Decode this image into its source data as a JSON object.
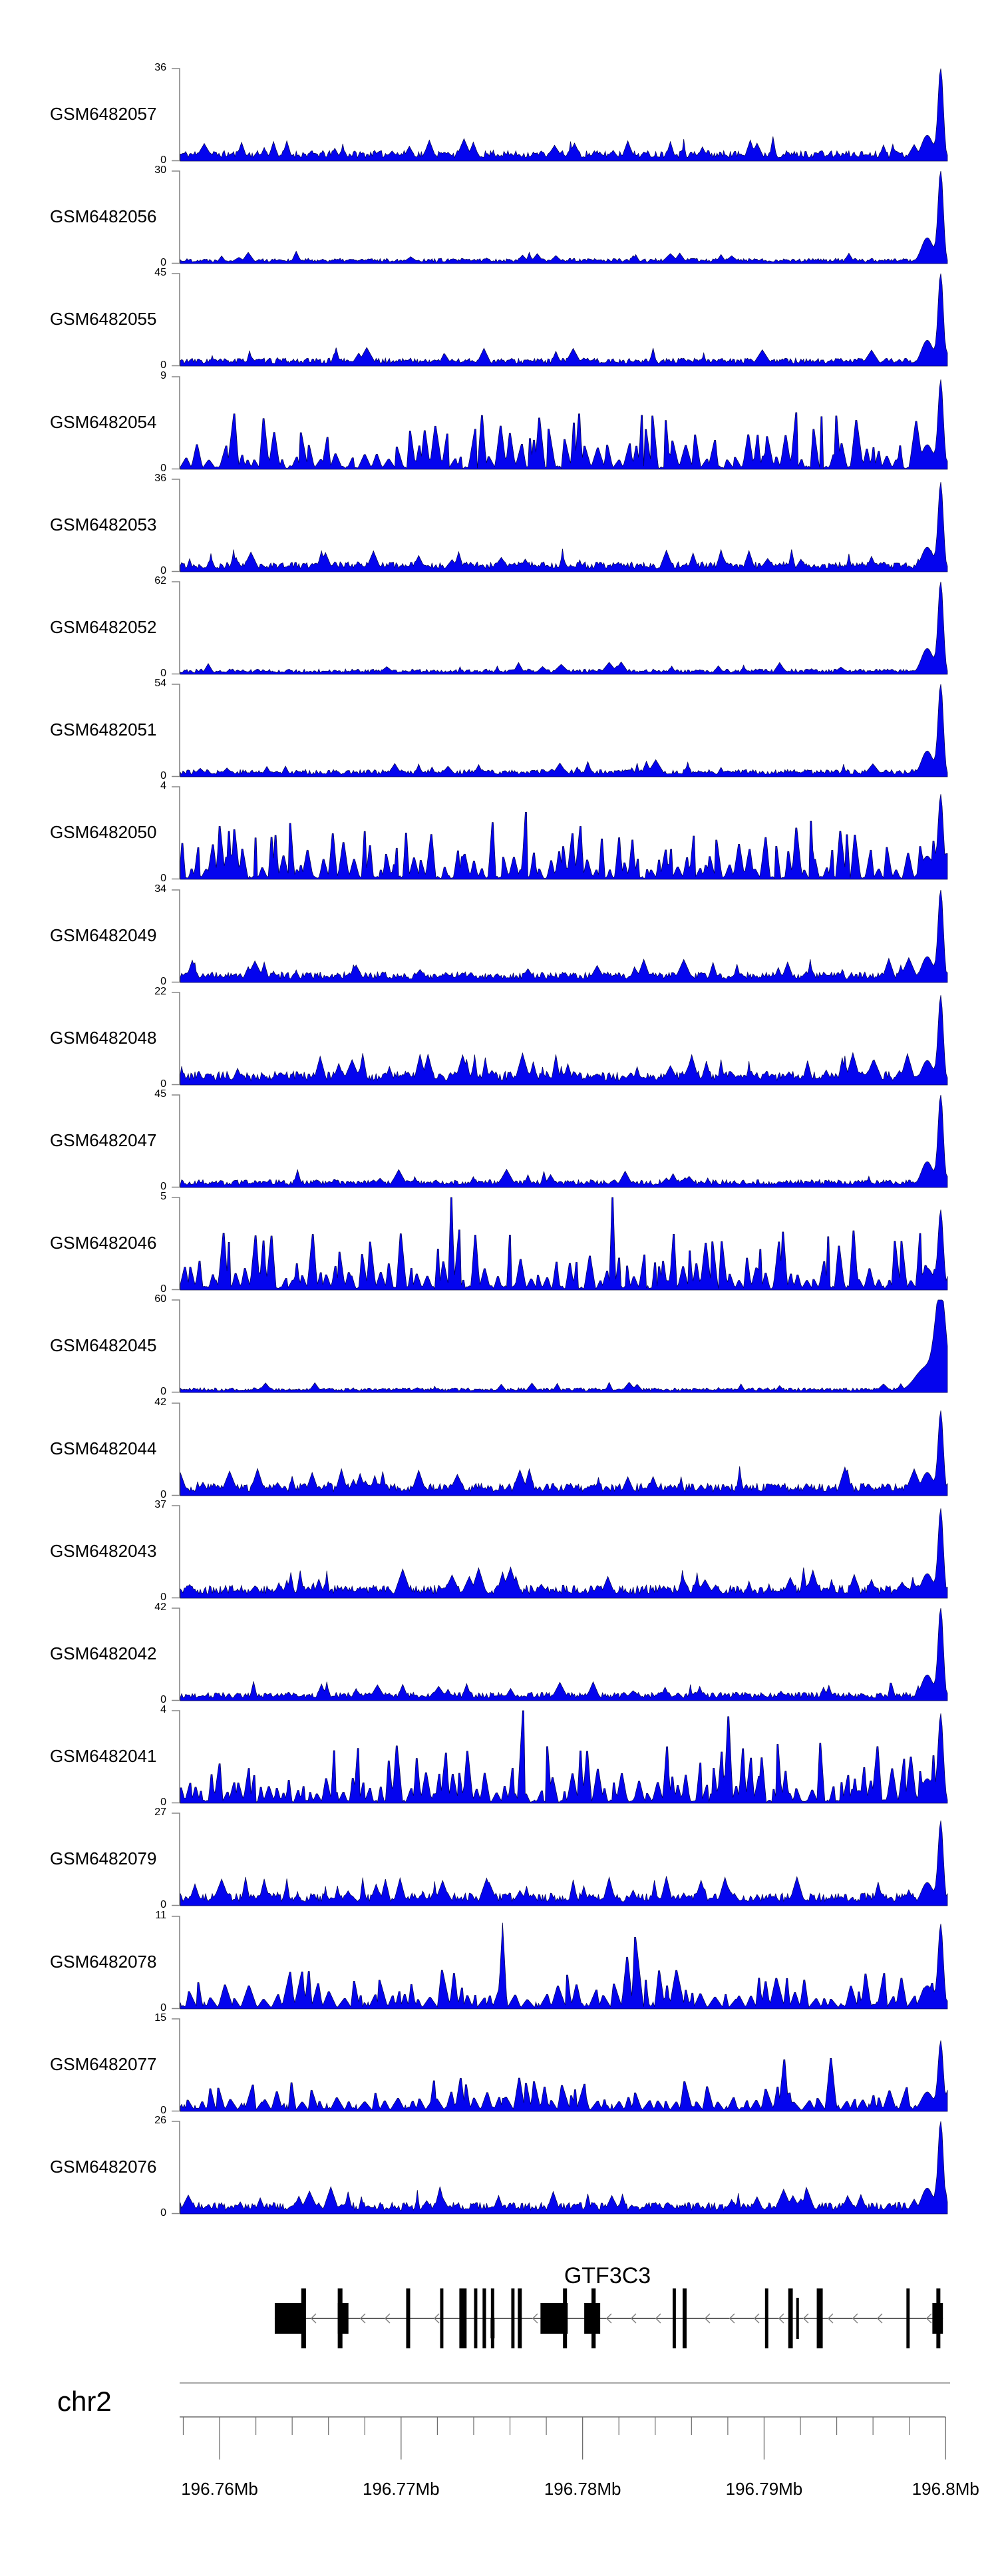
{
  "figure": {
    "background": "#ffffff",
    "description": "Genome browser coverage tracks (GEO samples) over the GTF3C3 locus on chr2"
  },
  "chart_data": {
    "type": "area",
    "chromosome": "chr2",
    "signal_color": "#0404ee",
    "signal_edge_color": "#00004a",
    "x_axis": {
      "unit": "Mb",
      "range_mb": [
        196.7578,
        196.8001
      ],
      "minor_tick_interval_mb": 0.002,
      "major_ticks": [
        {
          "mb": 196.76,
          "label": "196.76Mb"
        },
        {
          "mb": 196.77,
          "label": "196.77Mb"
        },
        {
          "mb": 196.78,
          "label": "196.78Mb"
        },
        {
          "mb": 196.79,
          "label": "196.79Mb"
        },
        {
          "mb": 196.8,
          "label": "196.8Mb"
        }
      ]
    },
    "tracks_note": "Each track is a dense read-coverage wiggle (0 to ymax). Exact per-base values are not resolvable; profiles are procedurally approximated from pattern parameters (pattern: 'noise' = low background with sharp promoter peak at right edge near 196.7995 Mb; 'tri' = broad spiky enrichment across the whole region).",
    "tracks": [
      {
        "label": "GSM6482057",
        "ymin": 0,
        "ymax": 36,
        "pattern": "noise",
        "base": 0.1,
        "bumpD": 0.05,
        "peak": 1.0,
        "seed": 11
      },
      {
        "label": "GSM6482056",
        "ymin": 0,
        "ymax": 30,
        "pattern": "noise",
        "base": 0.05,
        "bumpD": 0.03,
        "peak": 1.0,
        "seed": 22
      },
      {
        "label": "GSM6482055",
        "ymin": 0,
        "ymax": 45,
        "pattern": "noise",
        "base": 0.075,
        "bumpD": 0.04,
        "peak": 1.0,
        "seed": 33
      },
      {
        "label": "GSM6482054",
        "ymin": 0,
        "ymax": 9,
        "pattern": "tri",
        "amp": 0.5,
        "w": 5,
        "gapP": 0.25,
        "tallP": 0.06,
        "floor": 0.03,
        "peak": 0.95,
        "seed": 44
      },
      {
        "label": "GSM6482053",
        "ymin": 0,
        "ymax": 36,
        "pattern": "noise",
        "base": 0.095,
        "bumpD": 0.05,
        "peak": 0.95,
        "seed": 55
      },
      {
        "label": "GSM6482052",
        "ymin": 0,
        "ymax": 62,
        "pattern": "noise",
        "base": 0.05,
        "bumpD": 0.03,
        "peak": 1.0,
        "seed": 66
      },
      {
        "label": "GSM6482051",
        "ymin": 0,
        "ymax": 54,
        "pattern": "noise",
        "base": 0.07,
        "bumpD": 0.04,
        "peak": 1.0,
        "seed": 77
      },
      {
        "label": "GSM6482050",
        "ymin": 0,
        "ymax": 4,
        "pattern": "tri",
        "amp": 0.55,
        "w": 4,
        "gapP": 0.3,
        "tallP": 0.08,
        "floor": 0.03,
        "peak": 0.9,
        "seed": 88
      },
      {
        "label": "GSM6482049",
        "ymin": 0,
        "ymax": 34,
        "pattern": "noise",
        "base": 0.1,
        "bumpD": 0.05,
        "peak": 1.0,
        "seed": 99
      },
      {
        "label": "GSM6482048",
        "ymin": 0,
        "ymax": 22,
        "pattern": "noise",
        "base": 0.13,
        "bumpD": 0.06,
        "peak": 0.95,
        "seed": 110
      },
      {
        "label": "GSM6482047",
        "ymin": 0,
        "ymax": 45,
        "pattern": "noise",
        "base": 0.075,
        "bumpD": 0.04,
        "peak": 1.0,
        "seed": 121
      },
      {
        "label": "GSM6482046",
        "ymin": 0,
        "ymax": 5,
        "pattern": "tri",
        "amp": 0.55,
        "w": 4,
        "gapP": 0.28,
        "tallP": 0.08,
        "floor": 0.04,
        "peak": 0.85,
        "seed": 132
      },
      {
        "label": "GSM6482045",
        "ymin": 0,
        "ymax": 60,
        "pattern": "noise",
        "base": 0.045,
        "bumpD": 0.03,
        "peak": 1.0,
        "pw": 2.0,
        "seed": 143
      },
      {
        "label": "GSM6482044",
        "ymin": 0,
        "ymax": 42,
        "pattern": "noise",
        "base": 0.12,
        "bumpD": 0.06,
        "peak": 0.9,
        "seed": 154
      },
      {
        "label": "GSM6482043",
        "ymin": 0,
        "ymax": 37,
        "pattern": "noise",
        "base": 0.125,
        "bumpD": 0.06,
        "peak": 0.95,
        "seed": 165
      },
      {
        "label": "GSM6482042",
        "ymin": 0,
        "ymax": 42,
        "pattern": "noise",
        "base": 0.08,
        "bumpD": 0.04,
        "peak": 1.0,
        "seed": 176
      },
      {
        "label": "GSM6482041",
        "ymin": 0,
        "ymax": 4,
        "pattern": "tri",
        "amp": 0.55,
        "w": 4,
        "gapP": 0.3,
        "tallP": 0.09,
        "floor": 0.03,
        "peak": 0.95,
        "seed": 187
      },
      {
        "label": "GSM6482079",
        "ymin": 0,
        "ymax": 27,
        "pattern": "noise",
        "base": 0.12,
        "bumpD": 0.07,
        "peak": 0.9,
        "seed": 198
      },
      {
        "label": "GSM6482078",
        "ymin": 0,
        "ymax": 11,
        "pattern": "tri",
        "amp": 0.32,
        "w": 6,
        "gapP": 0.2,
        "tallP": 0.05,
        "floor": 0.06,
        "peak": 0.9,
        "spike_at": 0.419,
        "spike_h": 0.93,
        "seed": 209
      },
      {
        "label": "GSM6482077",
        "ymin": 0,
        "ymax": 15,
        "pattern": "tri",
        "amp": 0.26,
        "w": 6,
        "gapP": 0.18,
        "tallP": 0.04,
        "floor": 0.07,
        "peak": 0.75,
        "seed": 220
      },
      {
        "label": "GSM6482076",
        "ymin": 0,
        "ymax": 26,
        "pattern": "noise",
        "base": 0.11,
        "bumpD": 0.06,
        "peak": 1.0,
        "seed": 231
      }
    ],
    "gene_track": {
      "gene": "GTF3C3",
      "strand": "-",
      "label_position_mb": 196.78137,
      "span_mb": [
        196.76304,
        196.79985
      ],
      "elements_note": "t: 'tall' = tall thin exon bar, 'thick' = wide half-height exon box, 'short' = medium bar, 'lower' = thin bar with thickened lower half; s/e in Mb",
      "elements": [
        {
          "s": 196.76304,
          "e": 196.76472,
          "t": "thick"
        },
        {
          "s": 196.7645,
          "e": 196.76476,
          "t": "tall"
        },
        {
          "s": 196.76651,
          "e": 196.76677,
          "t": "tall"
        },
        {
          "s": 196.76651,
          "e": 196.7671,
          "t": "thick"
        },
        {
          "s": 196.77028,
          "e": 196.7705,
          "t": "tall"
        },
        {
          "s": 196.77215,
          "e": 196.77233,
          "t": "tall"
        },
        {
          "s": 196.77321,
          "e": 196.77361,
          "t": "tall"
        },
        {
          "s": 196.77402,
          "e": 196.7742,
          "t": "tall"
        },
        {
          "s": 196.77449,
          "e": 196.77468,
          "t": "tall"
        },
        {
          "s": 196.77493,
          "e": 196.77515,
          "t": "lower"
        },
        {
          "s": 196.77607,
          "e": 196.77625,
          "t": "tall"
        },
        {
          "s": 196.77643,
          "e": 196.77665,
          "t": "tall"
        },
        {
          "s": 196.77768,
          "e": 196.77918,
          "t": "thick"
        },
        {
          "s": 196.77892,
          "e": 196.77914,
          "t": "tall"
        },
        {
          "s": 196.78009,
          "e": 196.78097,
          "t": "thick"
        },
        {
          "s": 196.78049,
          "e": 196.78072,
          "t": "tall"
        },
        {
          "s": 196.78496,
          "e": 196.78514,
          "t": "tall"
        },
        {
          "s": 196.78551,
          "e": 196.78573,
          "t": "tall"
        },
        {
          "s": 196.79005,
          "e": 196.79023,
          "t": "tall"
        },
        {
          "s": 196.79133,
          "e": 196.79158,
          "t": "tall"
        },
        {
          "s": 196.79177,
          "e": 196.79191,
          "t": "short"
        },
        {
          "s": 196.7929,
          "e": 196.79323,
          "t": "tall"
        },
        {
          "s": 196.79784,
          "e": 196.79802,
          "t": "tall"
        },
        {
          "s": 196.79927,
          "e": 196.79985,
          "t": "thick"
        },
        {
          "s": 196.79949,
          "e": 196.79971,
          "t": "tall"
        }
      ]
    },
    "colors": {
      "axis_line": "#6e6e6e",
      "separator_line": "#8c8c8c",
      "y_bracket": "#878787",
      "gene_fill": "#000000",
      "arrow": "#7d7d7d",
      "text": "#000000"
    }
  }
}
